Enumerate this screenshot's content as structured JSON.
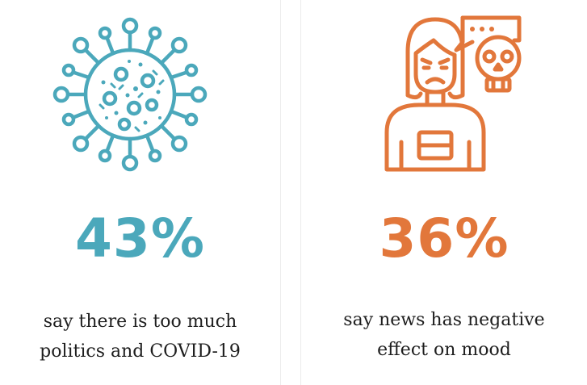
{
  "colors": {
    "teal": "#4ba8bb",
    "orange": "#e2773b",
    "text": "#1e1e1e",
    "divider": "#ececec"
  },
  "cards": [
    {
      "icon": "virus-icon",
      "stat": "43%",
      "caption_line1": "say there is too much",
      "caption_line2": "politics and COVID-19"
    },
    {
      "icon": "stressed-person-icon",
      "stat": "36%",
      "caption_line1": "say news has negative",
      "caption_line2": "effect on mood"
    }
  ]
}
